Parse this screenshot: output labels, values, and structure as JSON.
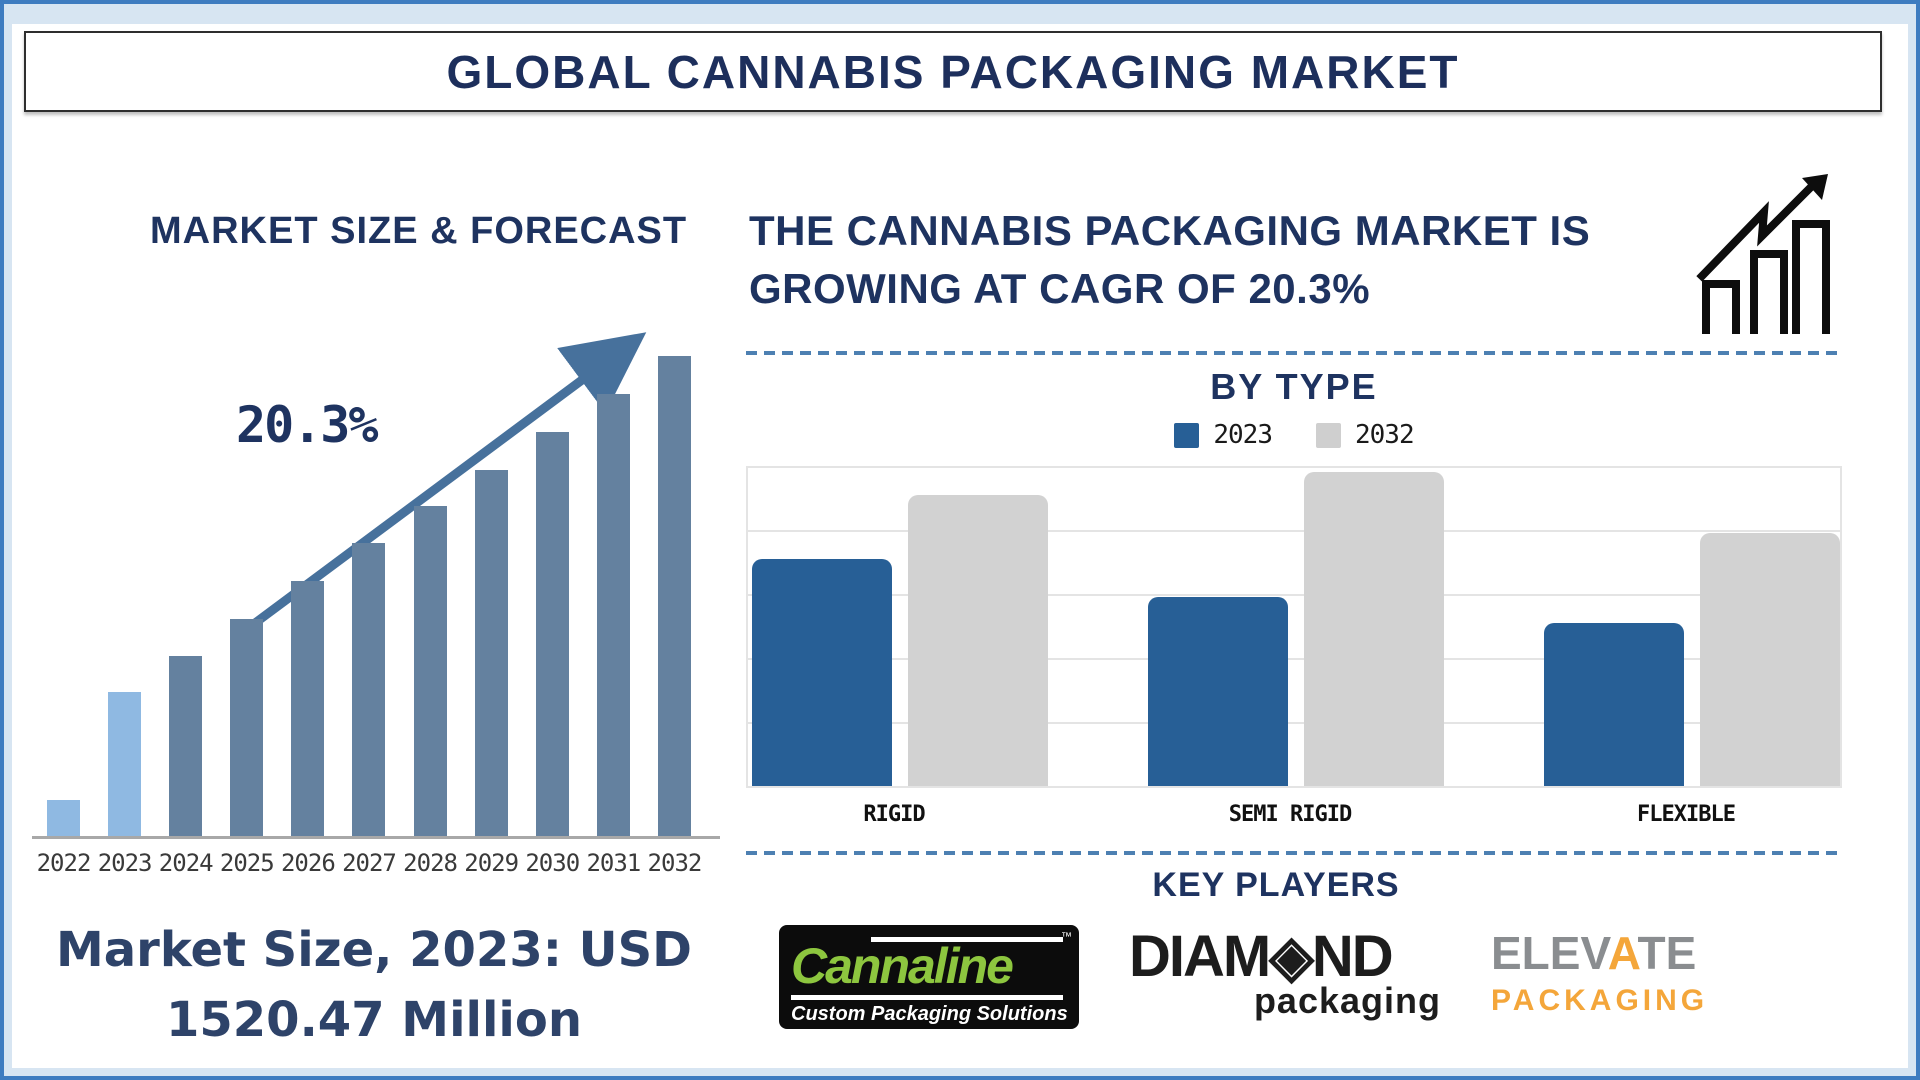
{
  "page": {
    "title": "GLOBAL CANNABIS PACKAGING MARKET"
  },
  "left_panel": {
    "section_title": "MARKET SIZE & FORECAST",
    "cagr_label": "20.3%",
    "market_size_line1": "Market Size, 2023: USD",
    "market_size_line2": "1520.47 Million"
  },
  "right_panel": {
    "headline_line1": "THE CANNABIS PACKAGING MARKET IS",
    "headline_line2": "GROWING AT CAGR OF 20.3%",
    "by_type_title": "BY TYPE",
    "legend": [
      {
        "label": "2023",
        "color": "#275f96"
      },
      {
        "label": "2032",
        "color": "#d2d2d2"
      }
    ],
    "key_players_title": "KEY PLAYERS"
  },
  "key_players": {
    "cannaline": {
      "name": "Cannaline",
      "tm": "™",
      "tagline": "Custom Packaging Solutions"
    },
    "diamond": {
      "part1": "DIAM",
      "glyph": "◈",
      "part2": "ND",
      "sub": "packaging"
    },
    "elevate": {
      "part1": "ELEV",
      "part2": "A",
      "part3": "TE",
      "sub": "PACKAGING"
    }
  },
  "colors": {
    "navy_text": "#1e3360",
    "frame_border": "#3e7cc0",
    "frame_inner": "#d7e5f2",
    "forecast_bar": "#64819f",
    "forecast_bar_highlight": "#8fb9e2",
    "arrow": "#47719c",
    "dashed_divider": "#4d80b2",
    "bar_2023": "#275f96",
    "bar_2032": "#d2d2d2",
    "gridline": "#e4e4e4",
    "axis_line": "#a8a8a8",
    "cannaline_green": "#8dc63f",
    "elevate_gray": "#8a8d90",
    "elevate_orange": "#f4a63a"
  },
  "chart_data": [
    {
      "type": "bar",
      "title": "MARKET SIZE & FORECAST",
      "categories": [
        "2022",
        "2023",
        "2024",
        "2025",
        "2026",
        "2027",
        "2028",
        "2029",
        "2030",
        "2031",
        "2032"
      ],
      "values_rel": [
        7.7,
        30.1,
        37.6,
        45.3,
        53.2,
        61.1,
        68.8,
        76.3,
        84.2,
        92.1,
        100
      ],
      "value_axis": "none shown - heights normalized to 2032 = 100",
      "highlight_first_n": 2,
      "annotation": "20.3%",
      "annotation_meaning": "CAGR growth arrow",
      "xlabel": "",
      "ylabel": "",
      "grid": false,
      "legend_position": "none"
    },
    {
      "type": "bar",
      "title": "BY TYPE",
      "categories": [
        "RIGID",
        "SEMI RIGID",
        "FLEXIBLE"
      ],
      "series": [
        {
          "name": "2023",
          "color": "#275f96",
          "values": [
            71,
            59,
            51
          ]
        },
        {
          "name": "2032",
          "color": "#d2d2d2",
          "values": [
            91,
            98,
            79
          ]
        }
      ],
      "value_axis": "none shown - relative heights, top gridline = 100",
      "grid": true,
      "legend_position": "top"
    }
  ]
}
